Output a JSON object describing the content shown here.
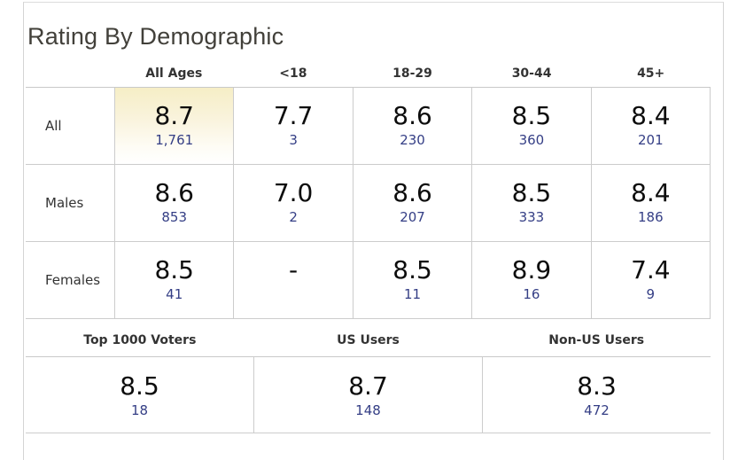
{
  "title": "Rating By Demographic",
  "demographics": {
    "col_headers": [
      "All Ages",
      "<18",
      "18-29",
      "30-44",
      "45+"
    ],
    "rows": [
      {
        "label": "All",
        "cells": [
          {
            "rating": "8.7",
            "votes": "1,761"
          },
          {
            "rating": "7.7",
            "votes": "3"
          },
          {
            "rating": "8.6",
            "votes": "230"
          },
          {
            "rating": "8.5",
            "votes": "360"
          },
          {
            "rating": "8.4",
            "votes": "201"
          }
        ]
      },
      {
        "label": "Males",
        "cells": [
          {
            "rating": "8.6",
            "votes": "853"
          },
          {
            "rating": "7.0",
            "votes": "2"
          },
          {
            "rating": "8.6",
            "votes": "207"
          },
          {
            "rating": "8.5",
            "votes": "333"
          },
          {
            "rating": "8.4",
            "votes": "186"
          }
        ]
      },
      {
        "label": "Females",
        "cells": [
          {
            "rating": "8.5",
            "votes": "41"
          },
          {
            "rating": "-",
            "votes": ""
          },
          {
            "rating": "8.5",
            "votes": "11"
          },
          {
            "rating": "8.9",
            "votes": "16"
          },
          {
            "rating": "7.4",
            "votes": "9"
          }
        ]
      }
    ],
    "highlight": {
      "row": "All",
      "column": "All Ages"
    }
  },
  "segments": {
    "col_headers": [
      "Top 1000 Voters",
      "US Users",
      "Non-US Users"
    ],
    "cells": [
      {
        "rating": "8.5",
        "votes": "18"
      },
      {
        "rating": "8.7",
        "votes": "148"
      },
      {
        "rating": "8.3",
        "votes": "472"
      }
    ]
  },
  "colors": {
    "highlight_top": "#f6eec6",
    "link": "#343e85",
    "border": "#cccccc",
    "title_text": "#42403a"
  }
}
